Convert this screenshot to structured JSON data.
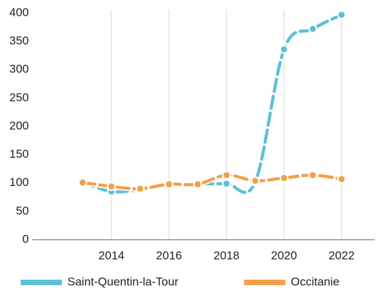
{
  "chart_data": {
    "type": "line",
    "x": [
      2013,
      2014,
      2015,
      2016,
      2017,
      2018,
      2019,
      2020,
      2021,
      2022
    ],
    "series": [
      {
        "name": "Saint-Quentin-la-Tour",
        "color": "#5cc1d7",
        "values": [
          102,
          85,
          89,
          99,
          99,
          99,
          102,
          336,
          372,
          397
        ]
      },
      {
        "name": "Occitanie",
        "color": "#f2a04a",
        "values": [
          101,
          94,
          90,
          98,
          98,
          114,
          104,
          109,
          114,
          107
        ]
      }
    ],
    "xlim": [
      2011.25,
      2023.15
    ],
    "xticks": [
      2014,
      2016,
      2018,
      2020,
      2022
    ],
    "ylim": [
      0,
      400
    ],
    "yticks": [
      0,
      50,
      100,
      150,
      200,
      250,
      300,
      350,
      400
    ],
    "grid": true,
    "legend": "bottom"
  }
}
